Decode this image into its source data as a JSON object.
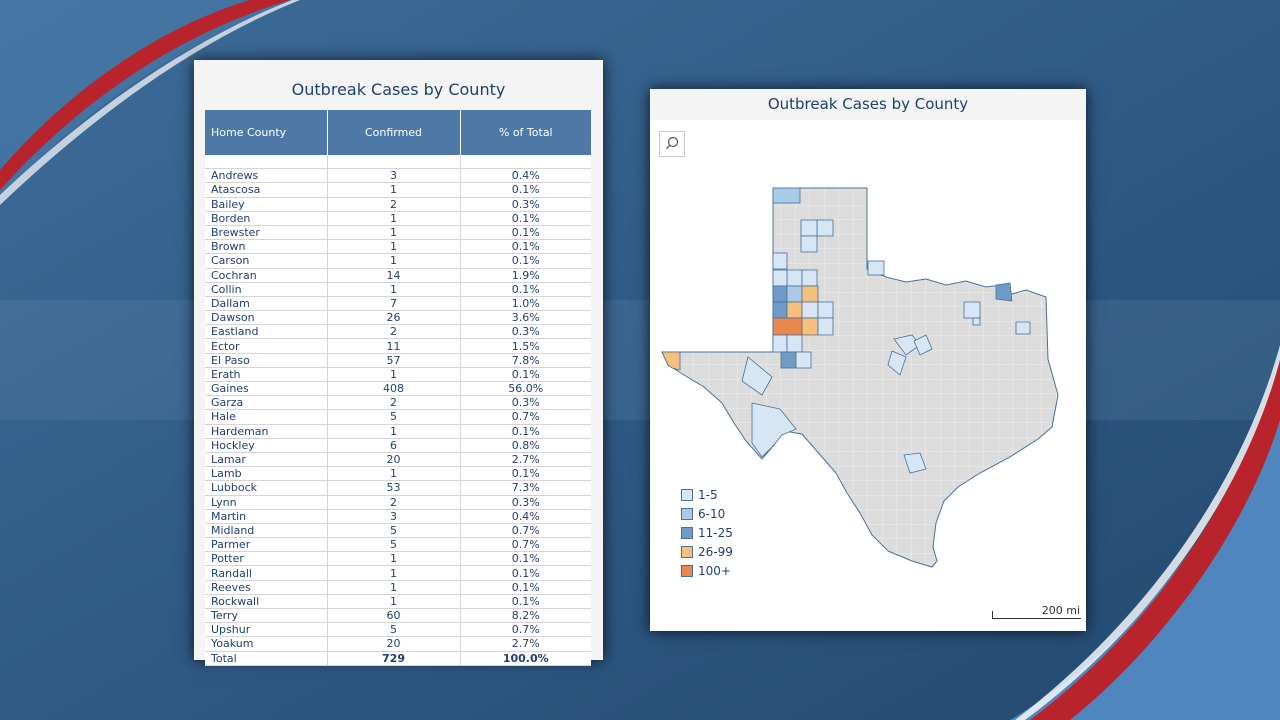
{
  "table": {
    "title": "Outbreak Cases by County",
    "headers": {
      "county": "Home County",
      "confirmed": "Confirmed",
      "pct": "% of Total"
    },
    "rows": [
      {
        "county": "Andrews",
        "confirmed": "3",
        "pct": "0.4%"
      },
      {
        "county": "Atascosa",
        "confirmed": "1",
        "pct": "0.1%"
      },
      {
        "county": "Bailey",
        "confirmed": "2",
        "pct": "0.3%"
      },
      {
        "county": "Borden",
        "confirmed": "1",
        "pct": "0.1%"
      },
      {
        "county": "Brewster",
        "confirmed": "1",
        "pct": "0.1%"
      },
      {
        "county": "Brown",
        "confirmed": "1",
        "pct": "0.1%"
      },
      {
        "county": "Carson",
        "confirmed": "1",
        "pct": "0.1%"
      },
      {
        "county": "Cochran",
        "confirmed": "14",
        "pct": "1.9%"
      },
      {
        "county": "Collin",
        "confirmed": "1",
        "pct": "0.1%"
      },
      {
        "county": "Dallam",
        "confirmed": "7",
        "pct": "1.0%"
      },
      {
        "county": "Dawson",
        "confirmed": "26",
        "pct": "3.6%"
      },
      {
        "county": "Eastland",
        "confirmed": "2",
        "pct": "0.3%"
      },
      {
        "county": "Ector",
        "confirmed": "11",
        "pct": "1.5%"
      },
      {
        "county": "El Paso",
        "confirmed": "57",
        "pct": "7.8%"
      },
      {
        "county": "Erath",
        "confirmed": "1",
        "pct": "0.1%"
      },
      {
        "county": "Gaines",
        "confirmed": "408",
        "pct": "56.0%"
      },
      {
        "county": "Garza",
        "confirmed": "2",
        "pct": "0.3%"
      },
      {
        "county": "Hale",
        "confirmed": "5",
        "pct": "0.7%"
      },
      {
        "county": "Hardeman",
        "confirmed": "1",
        "pct": "0.1%"
      },
      {
        "county": "Hockley",
        "confirmed": "6",
        "pct": "0.8%"
      },
      {
        "county": "Lamar",
        "confirmed": "20",
        "pct": "2.7%"
      },
      {
        "county": "Lamb",
        "confirmed": "1",
        "pct": "0.1%"
      },
      {
        "county": "Lubbock",
        "confirmed": "53",
        "pct": "7.3%"
      },
      {
        "county": "Lynn",
        "confirmed": "2",
        "pct": "0.3%"
      },
      {
        "county": "Martin",
        "confirmed": "3",
        "pct": "0.4%"
      },
      {
        "county": "Midland",
        "confirmed": "5",
        "pct": "0.7%"
      },
      {
        "county": "Parmer",
        "confirmed": "5",
        "pct": "0.7%"
      },
      {
        "county": "Potter",
        "confirmed": "1",
        "pct": "0.1%"
      },
      {
        "county": "Randall",
        "confirmed": "1",
        "pct": "0.1%"
      },
      {
        "county": "Reeves",
        "confirmed": "1",
        "pct": "0.1%"
      },
      {
        "county": "Rockwall",
        "confirmed": "1",
        "pct": "0.1%"
      },
      {
        "county": "Terry",
        "confirmed": "60",
        "pct": "8.2%"
      },
      {
        "county": "Upshur",
        "confirmed": "5",
        "pct": "0.7%"
      },
      {
        "county": "Yoakum",
        "confirmed": "20",
        "pct": "2.7%"
      }
    ],
    "total": {
      "county": "Total",
      "confirmed": "729",
      "pct": "100.0%"
    }
  },
  "map": {
    "title": "Outbreak Cases by County",
    "search_icon": "search-icon",
    "legend": [
      {
        "label": "1-5",
        "color": "#d6e6f5"
      },
      {
        "label": "6-10",
        "color": "#a9cbe8"
      },
      {
        "label": "11-25",
        "color": "#6f9cc7"
      },
      {
        "label": "26-99",
        "color": "#f5c07e"
      },
      {
        "label": "100+",
        "color": "#e9874f"
      }
    ],
    "scale_label": "200 mi",
    "base_color": "#dcdcdc"
  },
  "colors": {
    "background": "#3b6590",
    "header_blue": "#4e79a7",
    "title_text": "#1f3f6f",
    "accent_red": "#c0202a"
  }
}
